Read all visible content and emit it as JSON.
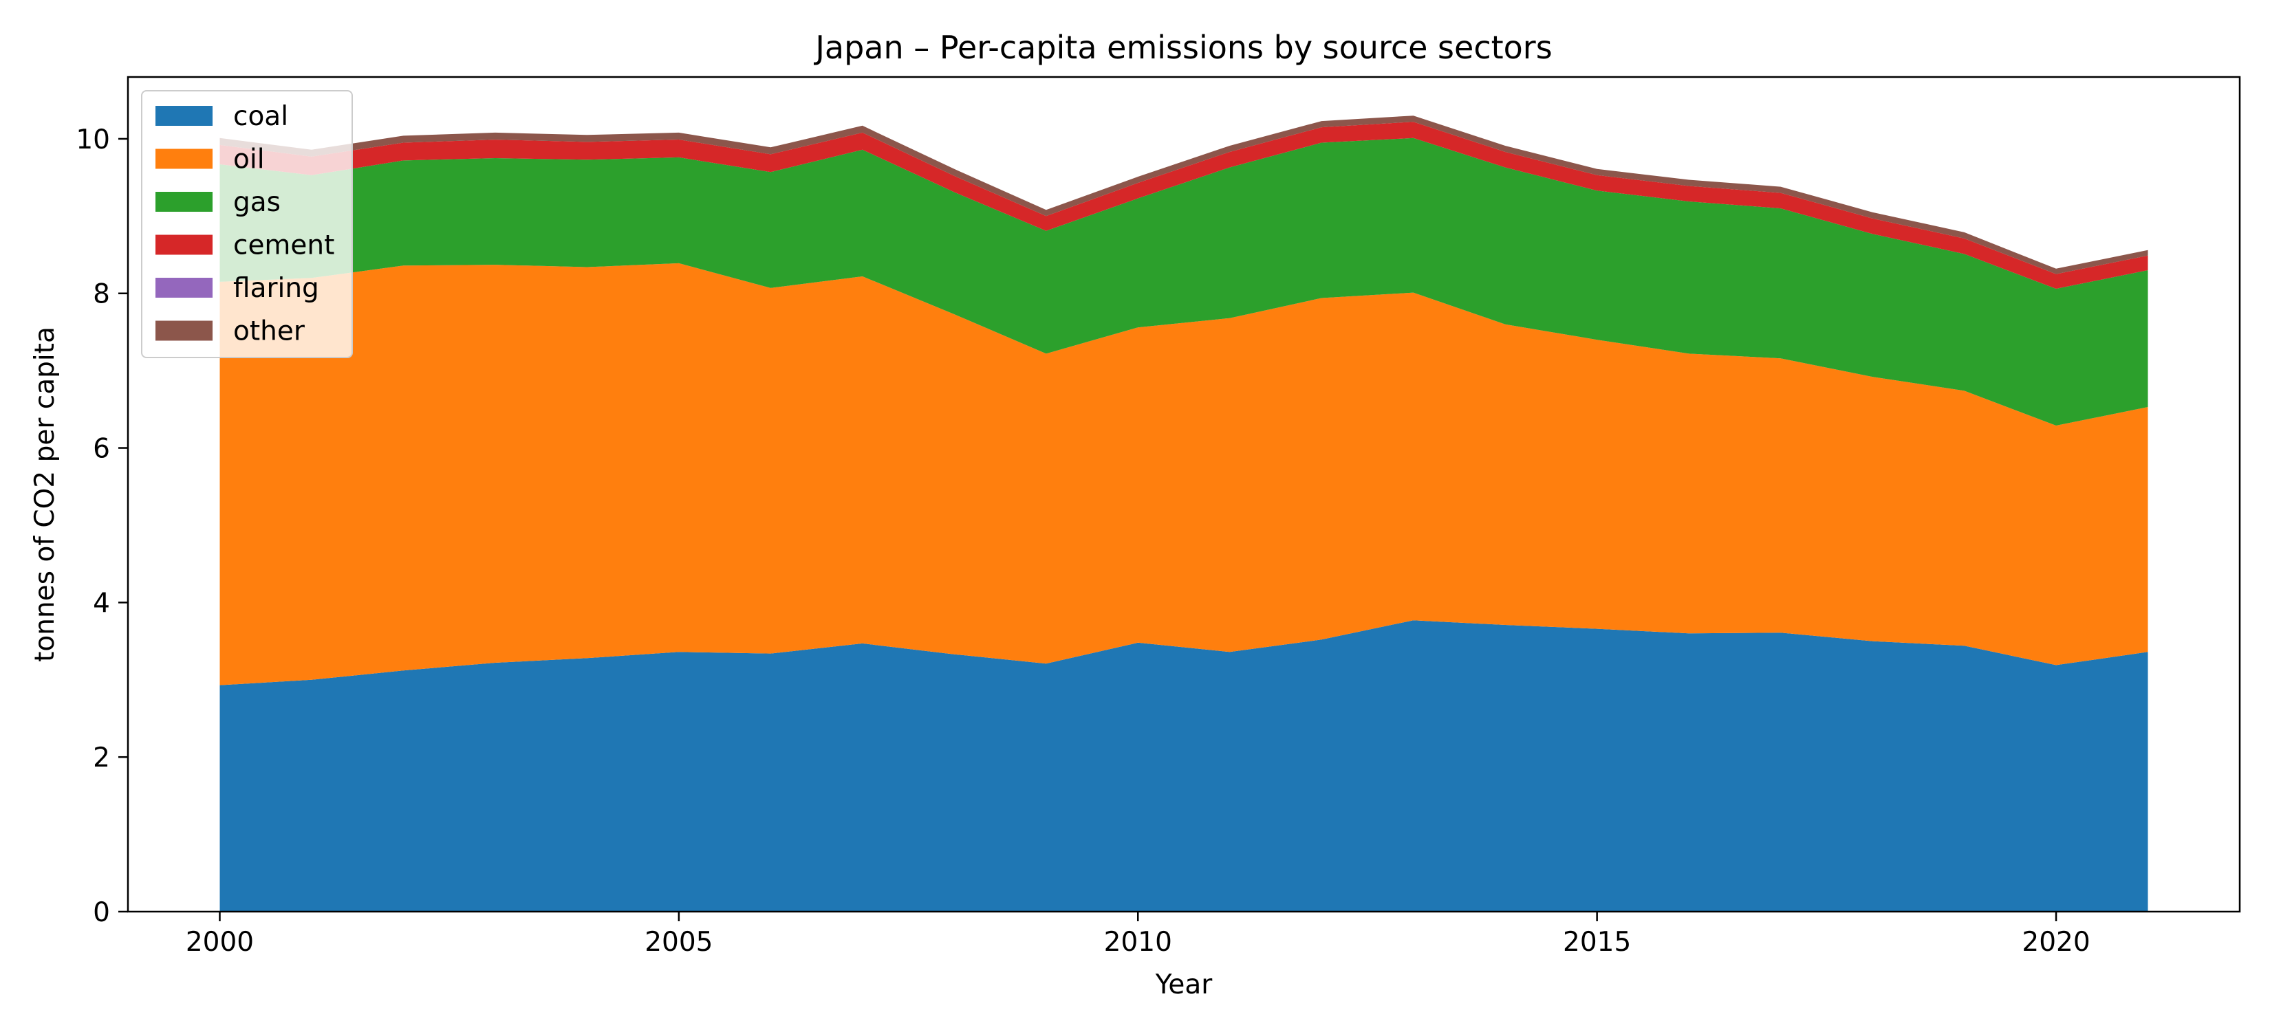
{
  "chart_data": {
    "type": "area",
    "stacked": true,
    "title": "Japan – Per-capita emissions by source sectors",
    "xlabel": "Year",
    "ylabel": "tonnes of CO2 per capita",
    "xlim": [
      1999,
      2022
    ],
    "ylim": [
      0,
      10.8
    ],
    "x_ticks": [
      2000,
      2005,
      2010,
      2015,
      2020
    ],
    "y_ticks": [
      0,
      2,
      4,
      6,
      8,
      10
    ],
    "grid": false,
    "legend_position": "upper-left",
    "x": [
      2000,
      2001,
      2002,
      2003,
      2004,
      2005,
      2006,
      2007,
      2008,
      2009,
      2010,
      2011,
      2012,
      2013,
      2014,
      2015,
      2016,
      2017,
      2018,
      2019,
      2020,
      2021
    ],
    "series": [
      {
        "name": "coal",
        "color": "#1f77b4",
        "values": [
          2.93,
          3.0,
          3.12,
          3.22,
          3.28,
          3.36,
          3.34,
          3.47,
          3.33,
          3.21,
          3.48,
          3.36,
          3.52,
          3.77,
          3.71,
          3.66,
          3.6,
          3.61,
          3.5,
          3.44,
          3.19,
          3.36
        ]
      },
      {
        "name": "oil",
        "color": "#ff7f0e",
        "values": [
          5.22,
          5.2,
          5.24,
          5.15,
          5.06,
          5.03,
          4.73,
          4.75,
          4.4,
          4.01,
          4.08,
          4.32,
          4.42,
          4.24,
          3.89,
          3.74,
          3.62,
          3.55,
          3.42,
          3.3,
          3.1,
          3.17
        ]
      },
      {
        "name": "gas",
        "color": "#2ca02c",
        "values": [
          1.52,
          1.33,
          1.36,
          1.38,
          1.39,
          1.37,
          1.5,
          1.64,
          1.58,
          1.59,
          1.67,
          1.95,
          2.01,
          2.0,
          2.03,
          1.93,
          1.97,
          1.94,
          1.85,
          1.77,
          1.77,
          1.77
        ]
      },
      {
        "name": "cement",
        "color": "#d62728",
        "values": [
          0.25,
          0.24,
          0.23,
          0.24,
          0.23,
          0.23,
          0.23,
          0.22,
          0.21,
          0.19,
          0.2,
          0.2,
          0.2,
          0.21,
          0.2,
          0.2,
          0.2,
          0.2,
          0.2,
          0.2,
          0.19,
          0.19
        ]
      },
      {
        "name": "flaring",
        "color": "#9467bd",
        "values": [
          0.0,
          0.0,
          0.0,
          0.0,
          0.0,
          0.0,
          0.0,
          0.0,
          0.0,
          0.0,
          0.0,
          0.0,
          0.0,
          0.0,
          0.0,
          0.0,
          0.0,
          0.0,
          0.0,
          0.0,
          0.0,
          0.0
        ]
      },
      {
        "name": "other",
        "color": "#8c564b",
        "values": [
          0.09,
          0.09,
          0.09,
          0.09,
          0.09,
          0.09,
          0.09,
          0.09,
          0.09,
          0.08,
          0.08,
          0.08,
          0.08,
          0.08,
          0.08,
          0.08,
          0.08,
          0.08,
          0.08,
          0.08,
          0.07,
          0.07
        ]
      }
    ]
  }
}
